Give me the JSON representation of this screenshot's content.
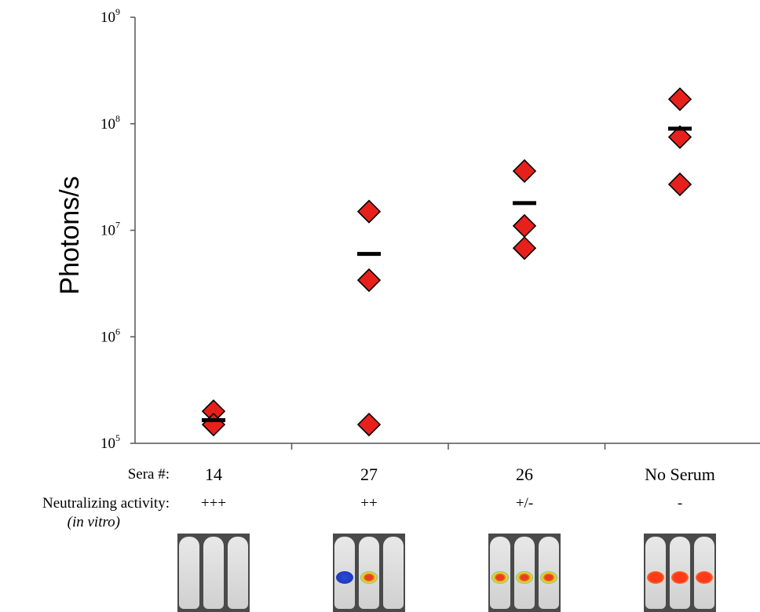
{
  "chart_data": {
    "type": "scatter",
    "title": "",
    "xlabel": "",
    "ylabel": "Photons/s",
    "yscale": "log",
    "ylim": [
      100000,
      1000000000
    ],
    "yticks": [
      {
        "value": 100000,
        "base": "10",
        "exp": "5"
      },
      {
        "value": 1000000,
        "base": "10",
        "exp": "6"
      },
      {
        "value": 10000000,
        "base": "10",
        "exp": "7"
      },
      {
        "value": 100000000,
        "base": "10",
        "exp": "8"
      },
      {
        "value": 1000000000,
        "base": "10",
        "exp": "9"
      }
    ],
    "categories": [
      "14",
      "27",
      "26",
      "No Serum"
    ],
    "points": [
      {
        "category": "14",
        "values": [
          200000,
          150000
        ]
      },
      {
        "category": "27",
        "values": [
          15000000,
          3400000,
          150000
        ]
      },
      {
        "category": "26",
        "values": [
          36000000,
          11000000,
          6800000
        ]
      },
      {
        "category": "No Serum",
        "values": [
          170000000,
          75000000,
          27000000
        ]
      }
    ],
    "means": [
      165000,
      6000000,
      18000000,
      90000000
    ],
    "marker": "diamond",
    "marker_color": "#e8201c",
    "mean_color": "#000000",
    "grid": false,
    "legend": "none"
  },
  "table": {
    "sera_label": "Sera #:",
    "activity_label": "Neutralizing activity:",
    "activity_sub": "(in vitro)",
    "activity": [
      "+++",
      "++",
      "+/-",
      "-"
    ]
  },
  "images": {
    "signal": [
      "none",
      "low",
      "medium",
      "high"
    ]
  }
}
